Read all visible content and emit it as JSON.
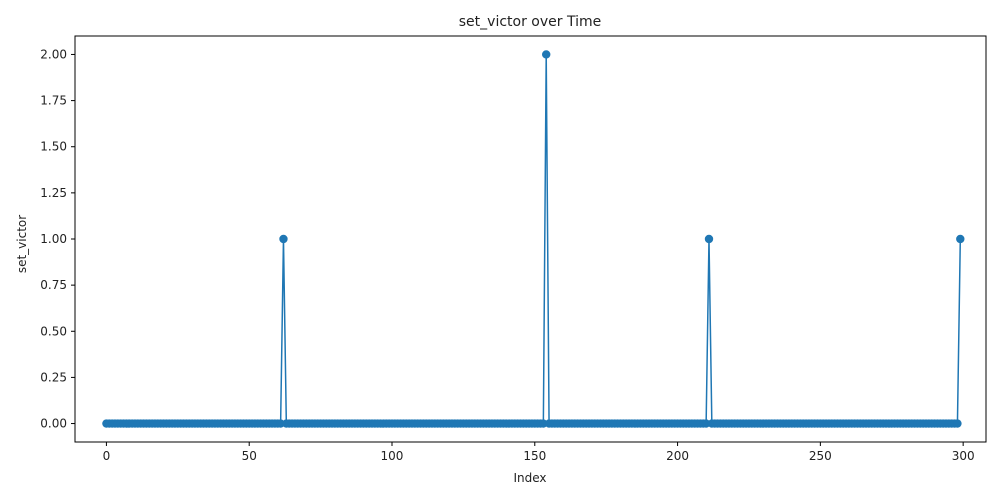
{
  "chart_data": {
    "type": "line",
    "title": "set_victor over Time",
    "xlabel": "Index",
    "ylabel": "set_victor",
    "xlim": [
      -11,
      308
    ],
    "ylim": [
      -0.1,
      2.1
    ],
    "xticks": [
      0,
      50,
      100,
      150,
      200,
      250,
      300
    ],
    "yticks": [
      0.0,
      0.25,
      0.5,
      0.75,
      1.0,
      1.25,
      1.5,
      1.75,
      2.0
    ],
    "ytick_labels": [
      "0.00",
      "0.25",
      "0.50",
      "0.75",
      "1.00",
      "1.25",
      "1.50",
      "1.75",
      "2.00"
    ],
    "marker": "circle",
    "grid": false,
    "color": "#1f77b4",
    "series": [
      {
        "x_start": 0,
        "x_end": 299,
        "baseline": 0,
        "nonzero": [
          {
            "x": 62,
            "y": 1
          },
          {
            "x": 154,
            "y": 2
          },
          {
            "x": 211,
            "y": 1
          },
          {
            "x": 299,
            "y": 1
          }
        ]
      }
    ]
  }
}
